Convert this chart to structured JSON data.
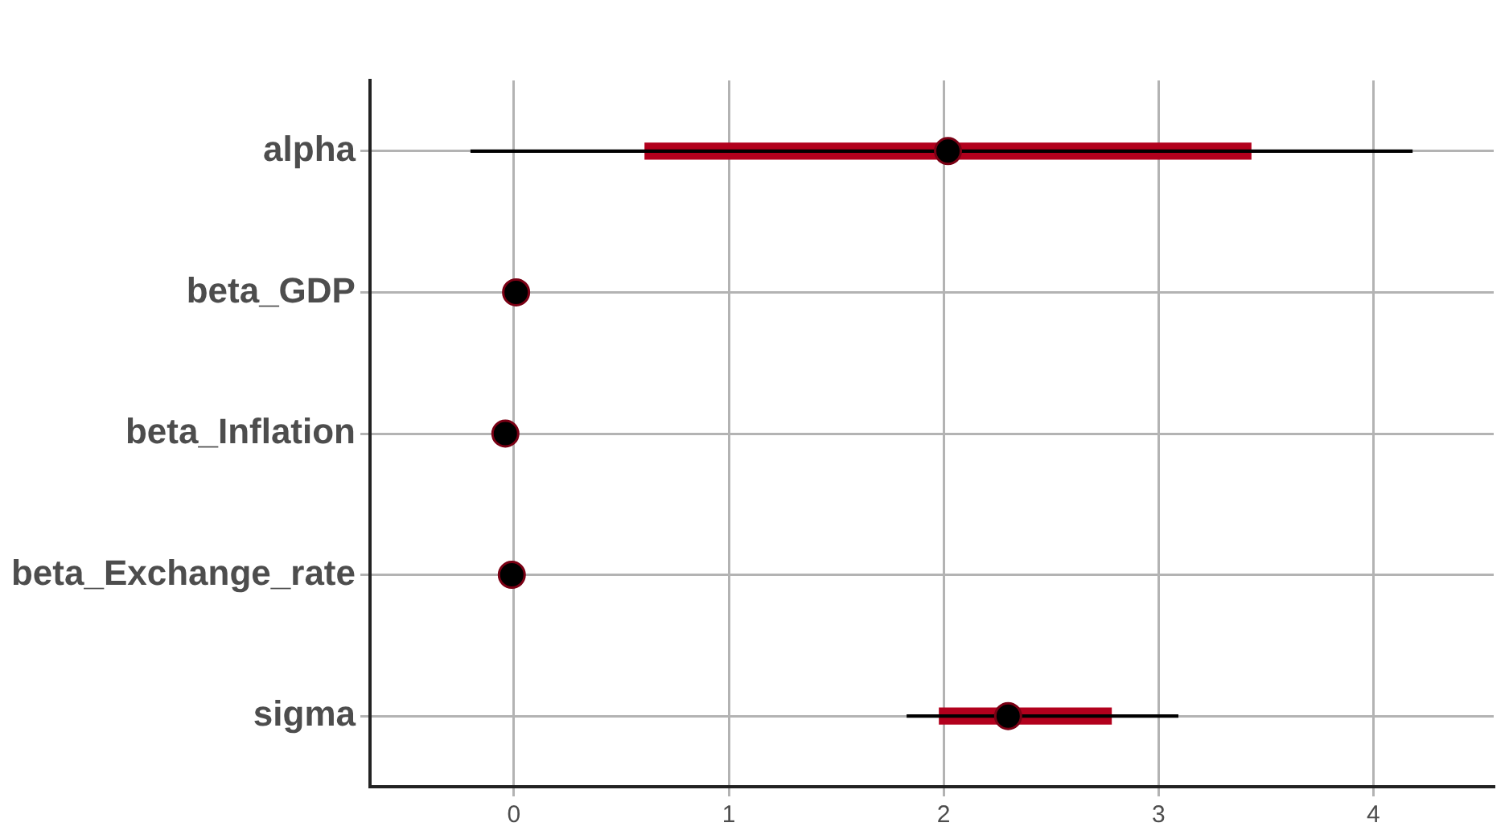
{
  "chart_data": {
    "type": "scatter",
    "orientation": "horizontal",
    "categories": [
      "alpha",
      "beta_GDP",
      "beta_Inflation",
      "beta_Exchange_rate",
      "sigma"
    ],
    "xlim": [
      -0.67,
      4.56
    ],
    "xticks": [
      0,
      1,
      2,
      3,
      4
    ],
    "grid": true,
    "legend": false,
    "series": [
      {
        "type": "bar",
        "color": "#000000",
        "base": [
          -0.2,
          null,
          null,
          null,
          1.83
        ],
        "values": [
          4.38,
          null,
          null,
          null,
          1.26
        ]
      },
      {
        "type": "bar",
        "color": "#b2001d",
        "base": [
          0.61,
          null,
          null,
          null,
          1.98
        ],
        "values": [
          2.82,
          null,
          null,
          null,
          0.8
        ]
      },
      {
        "color": "#000000",
        "marker": "circle",
        "values": [
          2.02,
          0.01,
          -0.04,
          -0.01,
          2.3
        ]
      }
    ]
  }
}
